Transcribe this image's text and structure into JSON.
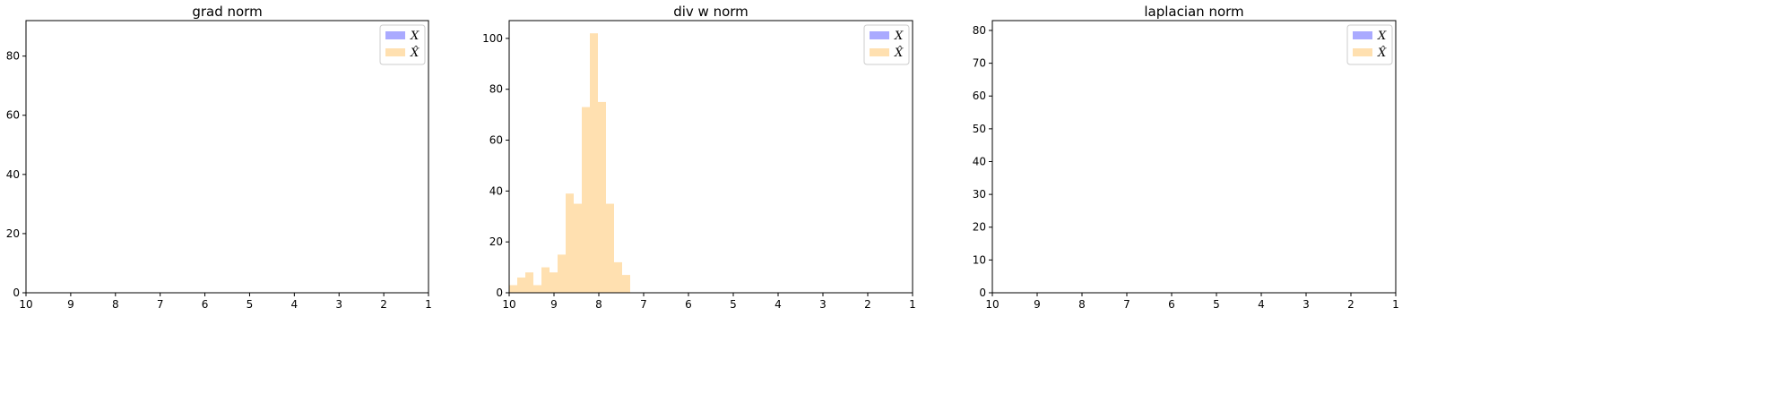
{
  "figure": {
    "background": "#ffffff",
    "series_colors": {
      "X": "#aaaaff",
      "Xhat": "#ffe0b0"
    }
  },
  "chart_data": [
    {
      "type": "bar",
      "title": "grad norm",
      "xlabel": "",
      "ylabel": "",
      "xlim": [
        10,
        1
      ],
      "ylim": [
        0,
        92
      ],
      "xticks": [
        10,
        9,
        8,
        7,
        6,
        5,
        4,
        3,
        2,
        1
      ],
      "yticks": [
        0,
        20,
        40,
        60,
        80
      ],
      "grid": false,
      "legend_position": "top-right",
      "series": [
        {
          "name": "X",
          "color": "#aaaaff",
          "bins": [],
          "counts": []
        },
        {
          "name": "X̂",
          "color": "#ffe0b0",
          "bins": [],
          "counts": []
        }
      ]
    },
    {
      "type": "bar",
      "title": "div w norm",
      "xlabel": "",
      "ylabel": "",
      "xlim": [
        10,
        1
      ],
      "ylim": [
        0,
        107
      ],
      "xticks": [
        10,
        9,
        8,
        7,
        6,
        5,
        4,
        3,
        2,
        1
      ],
      "yticks": [
        0,
        20,
        40,
        60,
        80,
        100
      ],
      "grid": false,
      "legend_position": "top-right",
      "series": [
        {
          "name": "X",
          "color": "#aaaaff",
          "bins": [],
          "counts": []
        },
        {
          "name": "X̂",
          "color": "#ffe0b0",
          "bins": [
            10.0,
            9.82,
            9.64,
            9.46,
            9.28,
            9.1,
            8.92,
            8.74,
            8.56,
            8.38,
            8.2,
            8.02,
            7.84,
            7.66,
            7.48
          ],
          "counts": [
            3,
            6,
            8,
            3,
            10,
            8,
            15,
            39,
            35,
            73,
            102,
            75,
            35,
            12,
            7
          ]
        }
      ]
    },
    {
      "type": "bar",
      "title": "laplacian norm",
      "xlabel": "",
      "ylabel": "",
      "xlim": [
        10,
        1
      ],
      "ylim": [
        0,
        83
      ],
      "xticks": [
        10,
        9,
        8,
        7,
        6,
        5,
        4,
        3,
        2,
        1
      ],
      "yticks": [
        0,
        10,
        20,
        30,
        40,
        50,
        60,
        70,
        80
      ],
      "grid": false,
      "legend_position": "top-right",
      "series": [
        {
          "name": "X",
          "color": "#aaaaff",
          "bins": [],
          "counts": []
        },
        {
          "name": "X̂",
          "color": "#ffe0b0",
          "bins": [],
          "counts": []
        }
      ]
    }
  ]
}
